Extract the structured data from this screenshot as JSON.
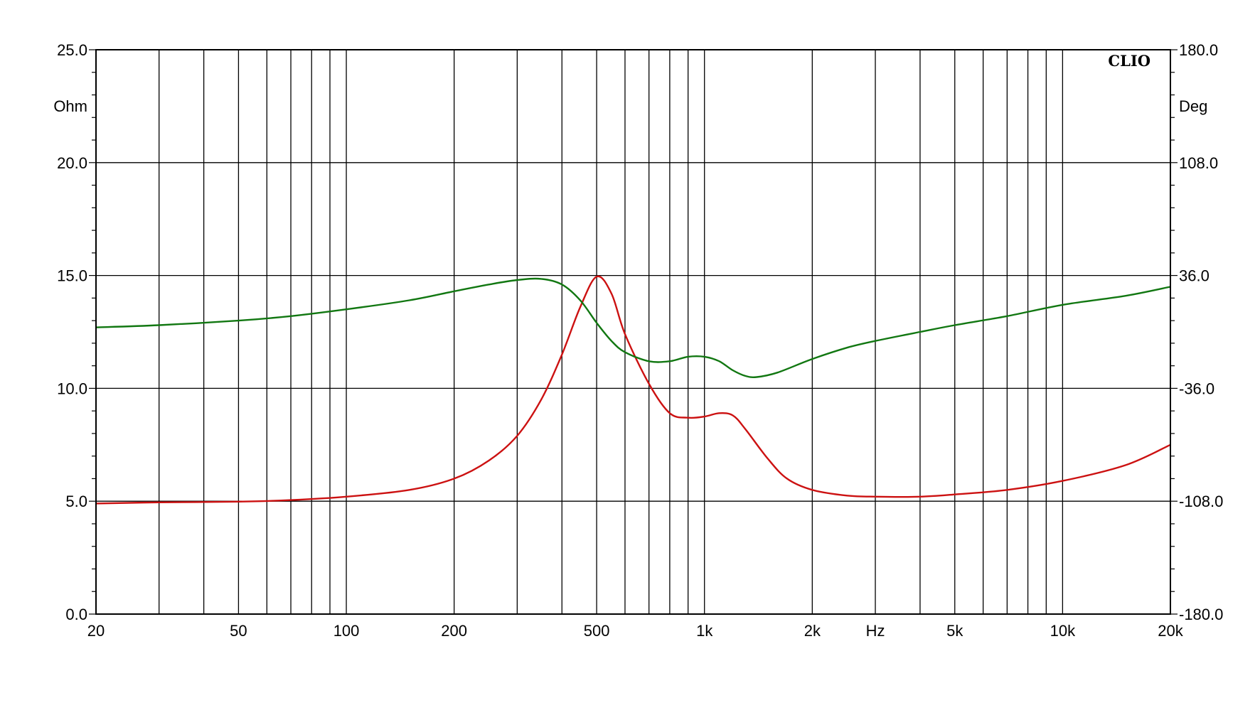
{
  "chart_data": {
    "type": "line",
    "brand": "CLIO",
    "x_scale": "log",
    "xlim": [
      20,
      20000
    ],
    "x_ticks": [
      {
        "value": 20,
        "label": "20"
      },
      {
        "value": 50,
        "label": "50"
      },
      {
        "value": 100,
        "label": "100"
      },
      {
        "value": 200,
        "label": "200"
      },
      {
        "value": 500,
        "label": "500"
      },
      {
        "value": 1000,
        "label": "1k"
      },
      {
        "value": 2000,
        "label": "2k"
      },
      {
        "value": 3000,
        "label": "Hz"
      },
      {
        "value": 5000,
        "label": "5k"
      },
      {
        "value": 10000,
        "label": "10k"
      },
      {
        "value": 20000,
        "label": "20k"
      }
    ],
    "xlabel": "Hz",
    "y_left": {
      "unit": "Ohm",
      "lim": [
        0,
        25
      ],
      "ticks": [
        {
          "value": 0,
          "label": "0.0"
        },
        {
          "value": 5,
          "label": "5.0"
        },
        {
          "value": 10,
          "label": "10.0"
        },
        {
          "value": 15,
          "label": "15.0"
        },
        {
          "value": 20,
          "label": "20.0"
        },
        {
          "value": 25,
          "label": "25.0"
        }
      ]
    },
    "y_right": {
      "unit": "Deg",
      "lim": [
        -180,
        180
      ],
      "ticks": [
        {
          "value": -180,
          "label": "-180.0"
        },
        {
          "value": -108,
          "label": "-108.0"
        },
        {
          "value": -36,
          "label": "-36.0"
        },
        {
          "value": 36,
          "label": "36.0"
        },
        {
          "value": 108,
          "label": "108.0"
        },
        {
          "value": 180,
          "label": "180.0"
        }
      ]
    },
    "grid": true,
    "series": [
      {
        "axis": "left",
        "color": "#cc1111",
        "points": [
          [
            20,
            4.9
          ],
          [
            30,
            4.95
          ],
          [
            50,
            4.98
          ],
          [
            70,
            5.05
          ],
          [
            100,
            5.2
          ],
          [
            150,
            5.5
          ],
          [
            200,
            6.0
          ],
          [
            250,
            6.8
          ],
          [
            300,
            7.9
          ],
          [
            350,
            9.5
          ],
          [
            400,
            11.5
          ],
          [
            450,
            13.6
          ],
          [
            500,
            14.95
          ],
          [
            550,
            14.2
          ],
          [
            600,
            12.4
          ],
          [
            700,
            10.2
          ],
          [
            800,
            8.9
          ],
          [
            900,
            8.7
          ],
          [
            1000,
            8.75
          ],
          [
            1100,
            8.9
          ],
          [
            1200,
            8.8
          ],
          [
            1300,
            8.2
          ],
          [
            1500,
            6.9
          ],
          [
            1700,
            6.0
          ],
          [
            2000,
            5.5
          ],
          [
            2500,
            5.25
          ],
          [
            3000,
            5.2
          ],
          [
            4000,
            5.2
          ],
          [
            5000,
            5.3
          ],
          [
            7000,
            5.5
          ],
          [
            10000,
            5.9
          ],
          [
            15000,
            6.6
          ],
          [
            20000,
            7.5
          ]
        ]
      },
      {
        "axis": "right",
        "color": "#117711",
        "points": [
          [
            20,
            12.7
          ],
          [
            30,
            12.8
          ],
          [
            50,
            13.0
          ],
          [
            70,
            13.2
          ],
          [
            100,
            13.5
          ],
          [
            150,
            13.9
          ],
          [
            200,
            14.3
          ],
          [
            250,
            14.6
          ],
          [
            300,
            14.8
          ],
          [
            350,
            14.85
          ],
          [
            400,
            14.6
          ],
          [
            450,
            13.9
          ],
          [
            500,
            12.9
          ],
          [
            550,
            12.1
          ],
          [
            600,
            11.6
          ],
          [
            700,
            11.2
          ],
          [
            800,
            11.2
          ],
          [
            900,
            11.4
          ],
          [
            1000,
            11.4
          ],
          [
            1100,
            11.2
          ],
          [
            1200,
            10.8
          ],
          [
            1300,
            10.55
          ],
          [
            1400,
            10.5
          ],
          [
            1600,
            10.7
          ],
          [
            2000,
            11.3
          ],
          [
            2500,
            11.8
          ],
          [
            3000,
            12.1
          ],
          [
            4000,
            12.5
          ],
          [
            5000,
            12.8
          ],
          [
            7000,
            13.2
          ],
          [
            10000,
            13.7
          ],
          [
            15000,
            14.1
          ],
          [
            20000,
            14.5
          ]
        ]
      }
    ]
  }
}
